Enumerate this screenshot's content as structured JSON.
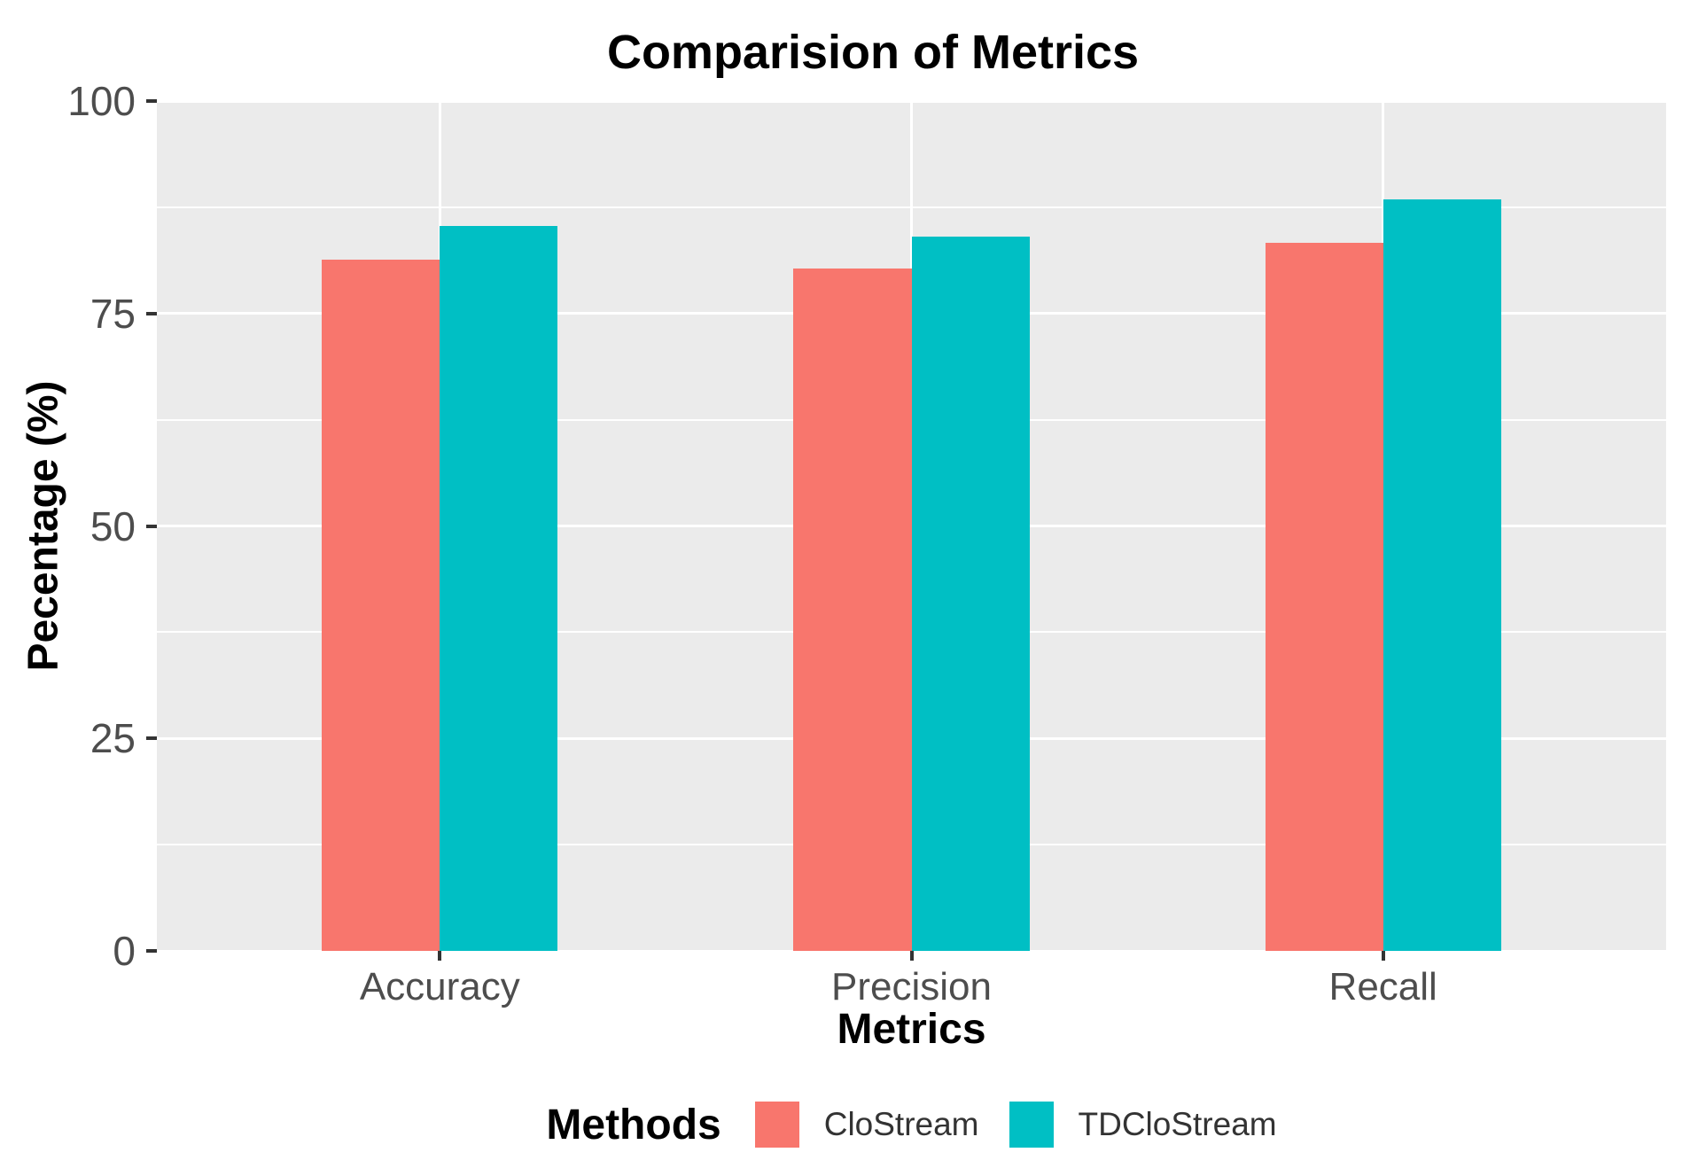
{
  "title": "Comparision of Metrics",
  "axes": {
    "x_title": "Metrics",
    "y_title": "Pecentage (%)",
    "y_tick_labels": [
      "0",
      "25",
      "50",
      "75",
      "100"
    ],
    "x_tick_labels": [
      "Accuracy",
      "Precision",
      "Recall"
    ]
  },
  "legend": {
    "title": "Methods",
    "items": [
      {
        "label": "CloStream",
        "color": "#F8766D"
      },
      {
        "label": "TDCloStream",
        "color": "#00BFC4"
      }
    ]
  },
  "colors": {
    "panel_background": "#EBEBEB",
    "gridline": "#FFFFFF",
    "tick_mark": "#333333",
    "tick_label": "#4D4D4D",
    "text": "#000000"
  },
  "chart_data": {
    "type": "bar",
    "title": "Comparision of Metrics",
    "xlabel": "Metrics",
    "ylabel": "Pecentage (%)",
    "categories": [
      "Accuracy",
      "Precision",
      "Recall"
    ],
    "series": [
      {
        "name": "CloStream",
        "color": "#F8766D",
        "values": [
          81.3,
          80.3,
          83.3
        ]
      },
      {
        "name": "TDCloStream",
        "color": "#00BFC4",
        "values": [
          85.3,
          84.0,
          88.4
        ]
      }
    ],
    "ylim": [
      0,
      100
    ],
    "y_major_breaks": [
      0,
      25,
      50,
      75,
      100
    ],
    "y_minor_breaks": [
      12.5,
      37.5,
      62.5,
      87.5
    ],
    "grid": true,
    "legend_position": "bottom",
    "bar_width_units": 0.25,
    "category_padding_units": 0.6
  }
}
